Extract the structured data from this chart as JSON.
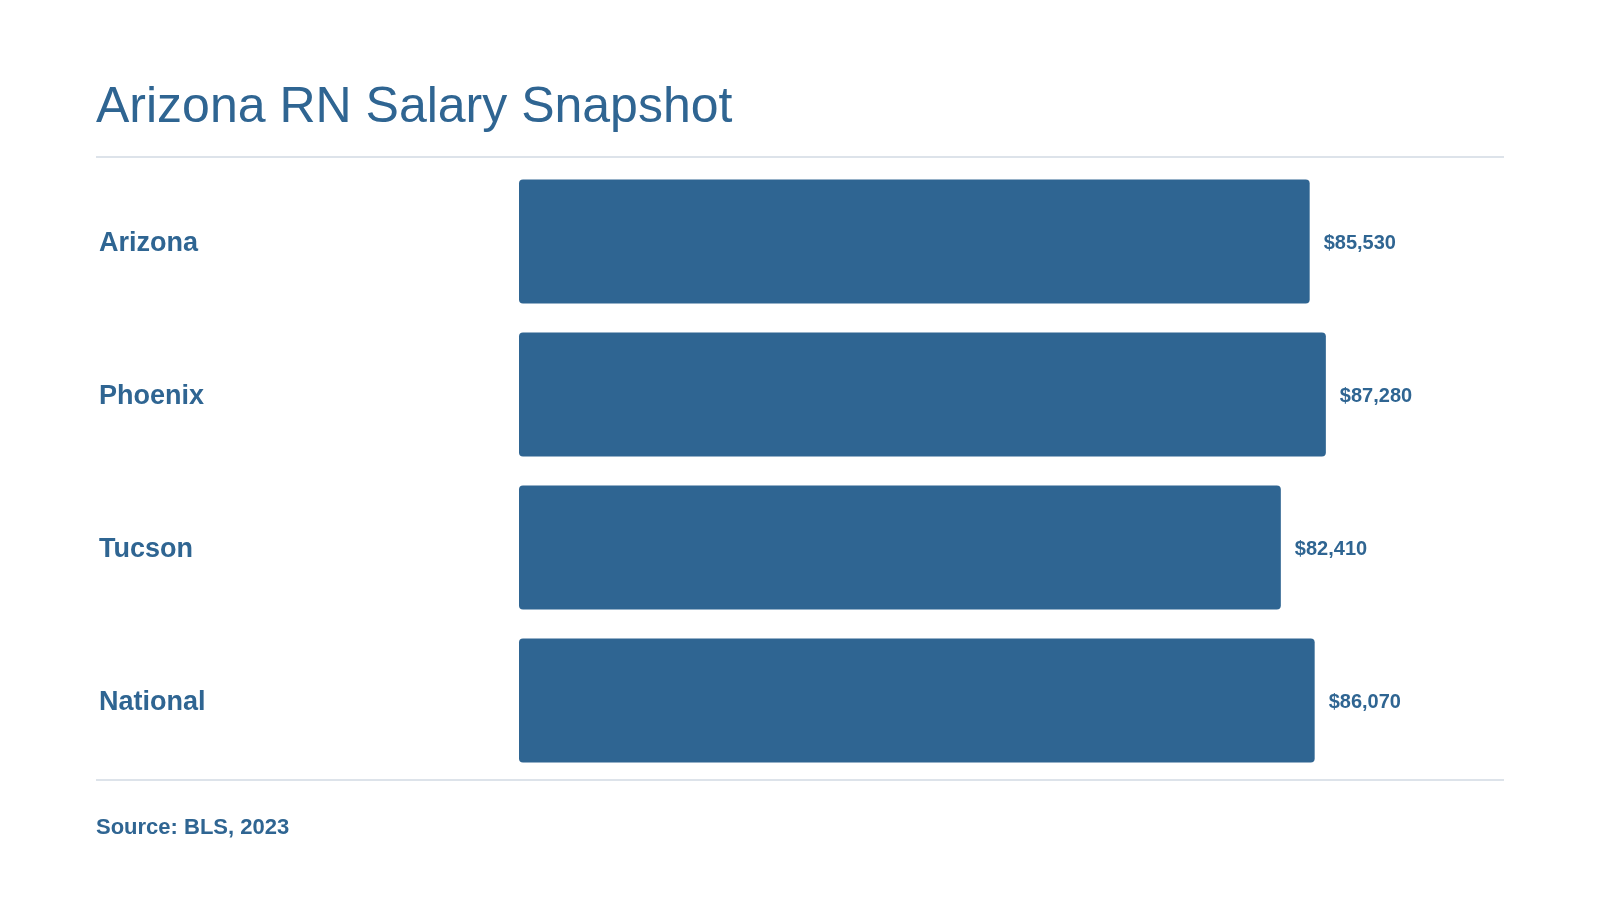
{
  "chart_data": {
    "type": "bar",
    "orientation": "horizontal",
    "title": "Arizona RN Salary Snapshot",
    "categories": [
      "Arizona",
      "Phoenix",
      "Tucson",
      "National"
    ],
    "values": [
      85530,
      87280,
      82410,
      86070
    ],
    "value_labels": [
      "$85,530",
      "$87,280",
      "$82,410",
      "$86,070"
    ],
    "color": "#2f6592",
    "annotations": [
      "Source: BLS, 2023"
    ]
  }
}
